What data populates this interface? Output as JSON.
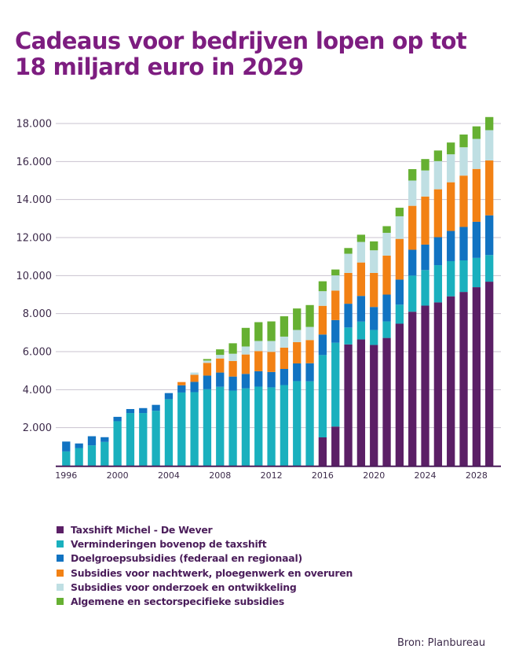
{
  "title": {
    "line1": "Cadeaus voor bedrijven lopen op tot",
    "line2": "18 miljard euro in 2029"
  },
  "source": "Bron: Planbureau",
  "chart_data": {
    "type": "bar",
    "stacked": true,
    "title": "Cadeaus voor bedrijven lopen op tot 18 miljard euro in 2029",
    "xlabel": "",
    "ylabel": "",
    "ylim": [
      0,
      18000
    ],
    "grid": true,
    "legend_position": "bottom-left",
    "yticks": [
      2000,
      4000,
      6000,
      8000,
      10000,
      12000,
      14000,
      16000,
      18000
    ],
    "ytick_labels": [
      "2.000",
      "4.000",
      "6.000",
      "8.000",
      "10.000",
      "12.000",
      "14.000",
      "16.000",
      "18.000"
    ],
    "xtick_labels": [
      "1996",
      "2000",
      "2004",
      "2008",
      "2012",
      "2016",
      "2020",
      "2024",
      "2028"
    ],
    "categories": [
      "1996",
      "1997",
      "1998",
      "1999",
      "2000",
      "2001",
      "2002",
      "2003",
      "2004",
      "2005",
      "2006",
      "2007",
      "2008",
      "2009",
      "2010",
      "2011",
      "2012",
      "2013",
      "2014",
      "2015",
      "2016",
      "2017",
      "2018",
      "2019",
      "2020",
      "2021",
      "2022",
      "2023",
      "2024",
      "2025",
      "2026",
      "2027",
      "2028",
      "2029"
    ],
    "series": [
      {
        "name": "Taxshift Michel - De Wever",
        "color": "#5b1f66",
        "values": [
          0,
          0,
          0,
          0,
          0,
          0,
          0,
          0,
          0,
          0,
          0,
          0,
          0,
          0,
          0,
          0,
          0,
          0,
          0,
          0,
          1490,
          2060,
          6380,
          6640,
          6350,
          6720,
          7470,
          8100,
          8420,
          8590,
          8910,
          9140,
          9390,
          9680
        ]
      },
      {
        "name": "Verminderingen bovenop de taxshift",
        "color": "#1ab0be",
        "values": [
          750,
          930,
          1070,
          1250,
          2340,
          2770,
          2770,
          2890,
          3500,
          3850,
          3870,
          4020,
          4150,
          3950,
          4070,
          4160,
          4120,
          4240,
          4450,
          4440,
          4330,
          4410,
          890,
          940,
          790,
          870,
          1000,
          1900,
          1870,
          1960,
          1850,
          1660,
          1540,
          1400
        ]
      },
      {
        "name": "Doelgroepsubsidies (federaal en regionaal)",
        "color": "#1173c2",
        "values": [
          520,
          240,
          480,
          250,
          230,
          210,
          260,
          310,
          320,
          380,
          540,
          720,
          750,
          740,
          760,
          810,
          810,
          850,
          930,
          950,
          1080,
          1190,
          1250,
          1350,
          1210,
          1410,
          1320,
          1360,
          1340,
          1470,
          1590,
          1760,
          1900,
          2090
        ]
      },
      {
        "name": "Subsidies voor nachtwerk, ploegenwerk en overuren",
        "color": "#f28114",
        "values": [
          0,
          0,
          0,
          0,
          0,
          0,
          0,
          0,
          0,
          170,
          370,
          670,
          740,
          820,
          1020,
          1060,
          1060,
          1120,
          1120,
          1220,
          1510,
          1550,
          1620,
          1760,
          1790,
          2050,
          2140,
          2310,
          2530,
          2520,
          2560,
          2700,
          2780,
          2890
        ]
      },
      {
        "name": "Subsidies voor onderzoek en ontwikkeling",
        "color": "#bfdfe3",
        "values": [
          0,
          0,
          0,
          0,
          0,
          0,
          0,
          0,
          0,
          0,
          120,
          120,
          190,
          380,
          420,
          530,
          570,
          580,
          640,
          690,
          770,
          800,
          1010,
          1080,
          1190,
          1200,
          1190,
          1330,
          1370,
          1480,
          1470,
          1490,
          1580,
          1590
        ]
      },
      {
        "name": "Algemene en sectorspecifieke subsidies",
        "color": "#66b032",
        "values": [
          0,
          0,
          0,
          0,
          0,
          0,
          0,
          0,
          0,
          0,
          0,
          80,
          290,
          550,
          980,
          990,
          1030,
          1070,
          1130,
          1150,
          520,
          310,
          300,
          380,
          470,
          350,
          450,
          600,
          600,
          560,
          620,
          670,
          660,
          690
        ]
      }
    ]
  },
  "style": {
    "axis_color": "#4a1d5a",
    "grid_color": "#c9c3cf",
    "tick_color": "#3c2a4a"
  }
}
